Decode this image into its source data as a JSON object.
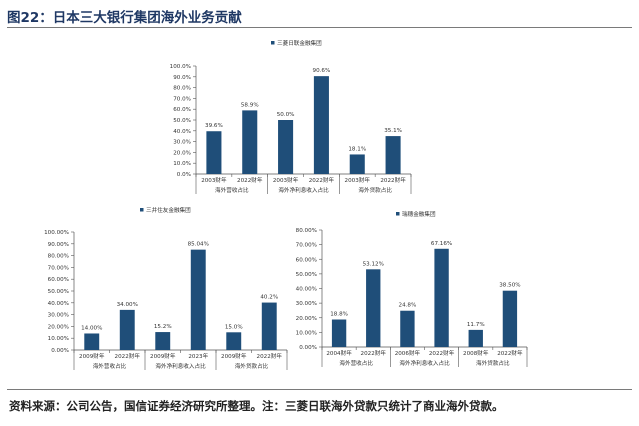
{
  "figure": {
    "title": "图22：日本三大银行集团海外业务贡献",
    "source": "资料来源：公司公告，国信证券经济研究所整理。注：三菱日联海外贷款只统计了商业海外贷款。"
  },
  "colors": {
    "bar": "#1f4e79",
    "axis": "#555555",
    "text": "#333333"
  },
  "chart_data": [
    {
      "type": "bar",
      "title": "三菱日联金融集团",
      "ylim": [
        0,
        100
      ],
      "yticks": [
        "0.0%",
        "10.0%",
        "20.0%",
        "30.0%",
        "40.0%",
        "50.0%",
        "60.0%",
        "70.0%",
        "80.0%",
        "90.0%",
        "100.0%"
      ],
      "categories": [
        "2003财年",
        "2022财年",
        "2003财年",
        "2022财年",
        "2003财年",
        "2022财年"
      ],
      "groups": [
        "海外营收占比",
        "海外净利息收入占比",
        "海外贷款占比"
      ],
      "values": [
        39.6,
        58.9,
        50.0,
        90.6,
        18.1,
        35.1
      ],
      "labels": [
        "39.6%",
        "58.9%",
        "50.0%",
        "90.6%",
        "18.1%",
        "35.1%"
      ],
      "legend": "top"
    },
    {
      "type": "bar",
      "title": "三井住友金融集团",
      "ylim": [
        0,
        100
      ],
      "yticks": [
        "0.00%",
        "10.00%",
        "20.00%",
        "30.00%",
        "40.00%",
        "50.00%",
        "60.00%",
        "70.00%",
        "80.00%",
        "90.00%",
        "100.00%"
      ],
      "categories": [
        "2009财年",
        "2022财年",
        "2009财年",
        "2023年",
        "2009财年",
        "2022财年"
      ],
      "groups": [
        "海外营收占比",
        "海外净利息收入占比",
        "海外贷款占比"
      ],
      "values": [
        14.0,
        34.0,
        15.2,
        85.04,
        15.0,
        40.2
      ],
      "labels": [
        "14.00%",
        "34.00%",
        "15.2%",
        "85.04%",
        "15.0%",
        "40.2%"
      ],
      "legend": "top"
    },
    {
      "type": "bar",
      "title": "瑞穗金融集团",
      "ylim": [
        0,
        80
      ],
      "yticks": [
        "0.00%",
        "10.00%",
        "20.00%",
        "30.00%",
        "40.00%",
        "50.00%",
        "60.00%",
        "70.00%",
        "80.00%"
      ],
      "categories": [
        "2004财年",
        "2022财年",
        "2006财年",
        "2022财年",
        "2008财年",
        "2022财年"
      ],
      "groups": [
        "海外营收占比",
        "海外净利息收入占比",
        "海外贷款占比"
      ],
      "values": [
        18.8,
        53.12,
        24.8,
        67.16,
        11.7,
        38.5
      ],
      "labels": [
        "18.8%",
        "53.12%",
        "24.8%",
        "67.16%",
        "11.7%",
        "38.50%"
      ],
      "legend": "top"
    }
  ]
}
